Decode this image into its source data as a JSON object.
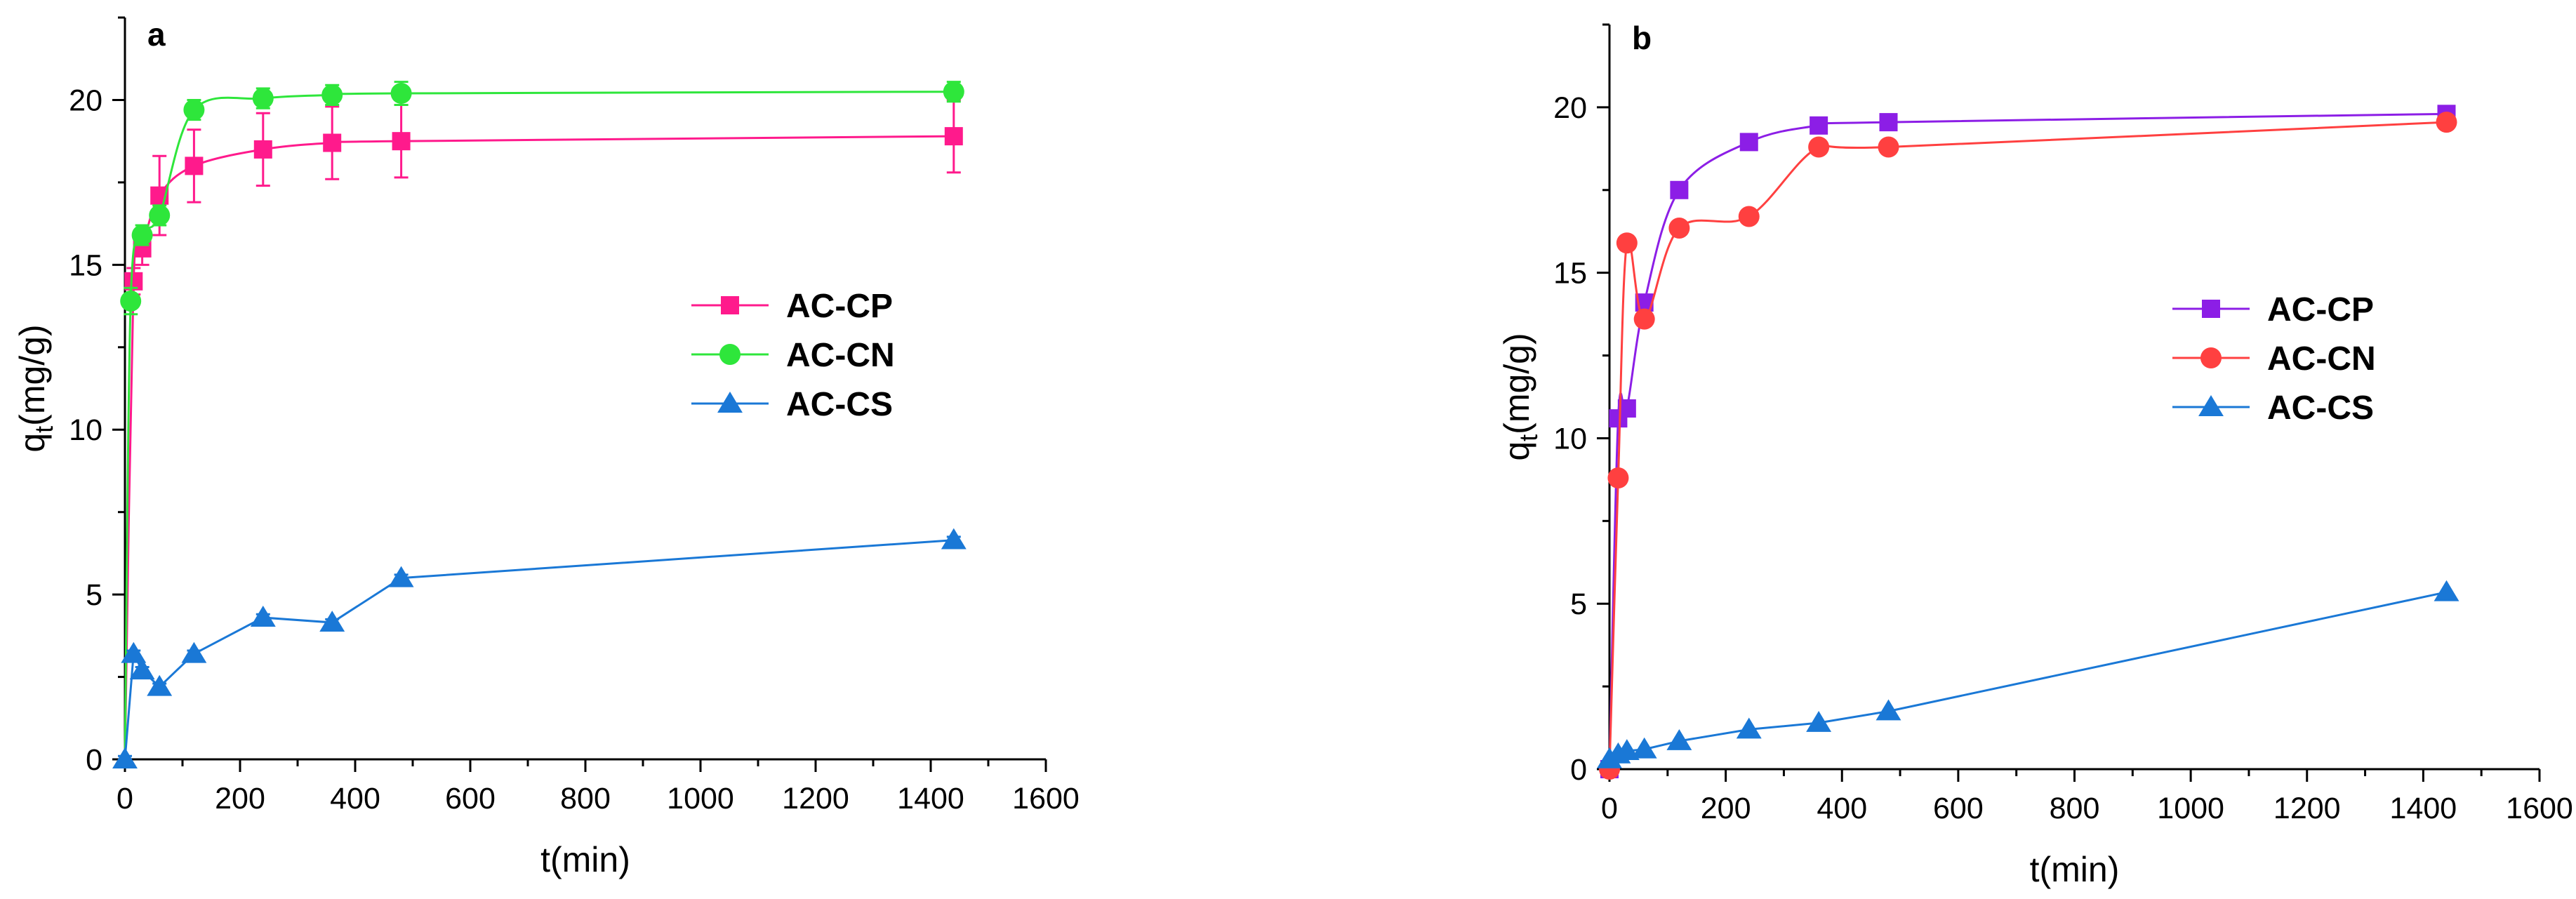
{
  "figure": {
    "panels": [
      "a",
      "b"
    ]
  },
  "chart_data": [
    {
      "type": "line",
      "panel_label": "a",
      "xlabel": "t(min)",
      "ylabel": {
        "main": "q",
        "sub": "t",
        "rest": "(mg/g)"
      },
      "xlim": [
        0,
        1600
      ],
      "ylim": [
        0,
        22.5
      ],
      "xticks": [
        0,
        200,
        400,
        600,
        800,
        1000,
        1200,
        1400,
        1600
      ],
      "yticks": [
        0,
        5,
        10,
        15,
        20
      ],
      "legend_position": "center-right",
      "series": [
        {
          "name": "AC-CP",
          "color": "#ff1a8c",
          "marker": "square",
          "smooth": true,
          "x": [
            15,
            30,
            60,
            120,
            240,
            360,
            480,
            1440
          ],
          "y": [
            14.5,
            15.5,
            17.1,
            18.0,
            18.5,
            18.7,
            18.75,
            18.9
          ],
          "err": [
            0.4,
            0.5,
            1.2,
            1.1,
            1.1,
            1.1,
            1.1,
            1.1
          ]
        },
        {
          "name": "AC-CN",
          "color": "#2ee63b",
          "marker": "circle",
          "smooth": true,
          "x": [
            10,
            30,
            60,
            120,
            240,
            360,
            480,
            1440
          ],
          "y": [
            13.9,
            15.9,
            16.5,
            19.7,
            20.05,
            20.15,
            20.2,
            20.25
          ],
          "err": [
            0.4,
            0.3,
            0.3,
            0.3,
            0.3,
            0.3,
            0.35,
            0.3
          ]
        },
        {
          "name": "AC-CS",
          "color": "#1a78d6",
          "marker": "triangle",
          "smooth": false,
          "x": [
            0,
            15,
            30,
            60,
            120,
            240,
            360,
            480,
            1440
          ],
          "y": [
            0,
            3.2,
            2.7,
            2.2,
            3.2,
            4.3,
            4.15,
            5.5,
            6.65
          ],
          "err": [
            0.1,
            0.1,
            0.1,
            0.1,
            0.1,
            0.1,
            0.1,
            0.1,
            0.1
          ]
        }
      ]
    },
    {
      "type": "line",
      "panel_label": "b",
      "xlabel": "t(min)",
      "ylabel": {
        "main": "q",
        "sub": "t",
        "rest": "(mg/g)"
      },
      "xlim": [
        0,
        1600
      ],
      "ylim": [
        0,
        22.5
      ],
      "xticks": [
        0,
        200,
        400,
        600,
        800,
        1000,
        1200,
        1400,
        1600
      ],
      "yticks": [
        0,
        5,
        10,
        15,
        20
      ],
      "legend_position": "center-right",
      "series": [
        {
          "name": "AC-CP",
          "color": "#8c1ee6",
          "marker": "square",
          "smooth": true,
          "x": [
            0,
            15,
            30,
            60,
            120,
            240,
            360,
            480,
            1440
          ],
          "y": [
            0,
            10.6,
            10.9,
            14.1,
            17.5,
            18.95,
            19.45,
            19.55,
            19.8
          ]
        },
        {
          "name": "AC-CN",
          "color": "#ff4040",
          "marker": "circle",
          "smooth": true,
          "x": [
            0,
            15,
            30,
            60,
            120,
            240,
            360,
            480,
            1440
          ],
          "y": [
            0,
            8.8,
            15.9,
            13.6,
            16.35,
            16.7,
            18.8,
            18.8,
            19.55
          ]
        },
        {
          "name": "AC-CS",
          "color": "#1a78d6",
          "marker": "triangle",
          "smooth": false,
          "x": [
            0,
            15,
            30,
            60,
            120,
            240,
            360,
            480,
            1440
          ],
          "y": [
            0.3,
            0.45,
            0.55,
            0.6,
            0.85,
            1.2,
            1.4,
            1.75,
            5.35
          ]
        }
      ]
    }
  ]
}
